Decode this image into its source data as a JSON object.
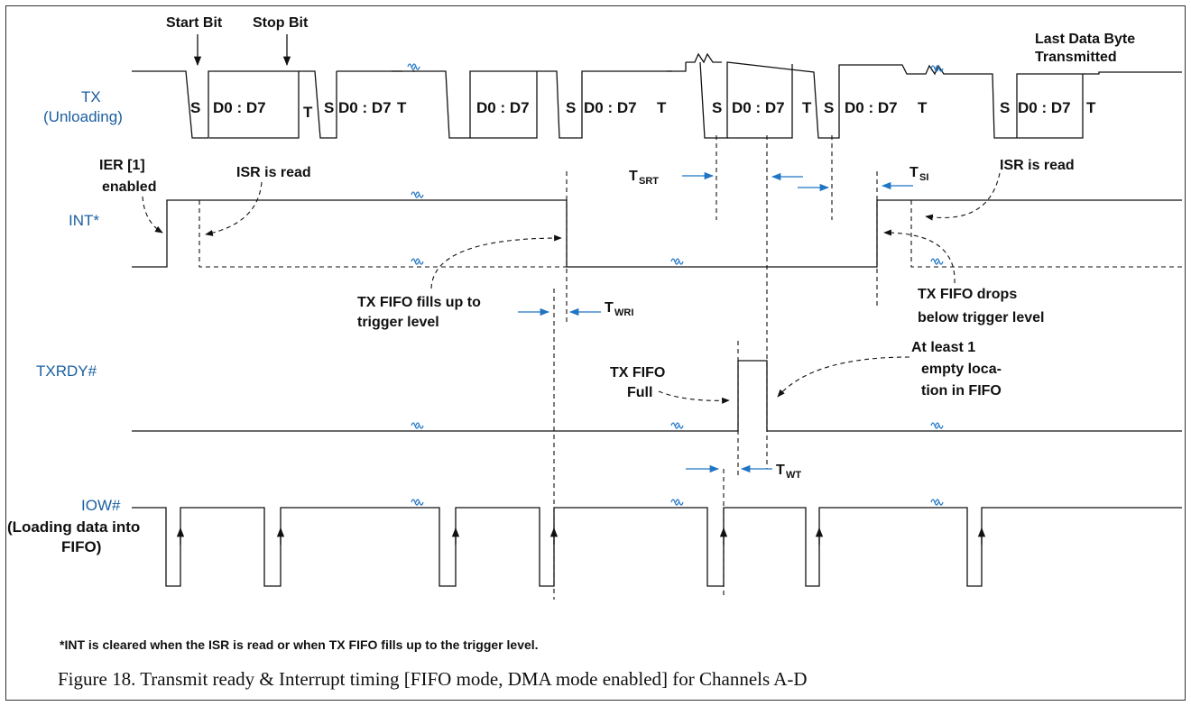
{
  "signals": {
    "tx": "TX",
    "tx_sub": "(Unloading)",
    "int": "INT*",
    "txrdy": "TXRDY#",
    "iow": "IOW#",
    "iow_sub1": "(Loading data into",
    "iow_sub2": "FIFO)"
  },
  "bits": {
    "s": "S",
    "t": "T",
    "data": "D0 : D7"
  },
  "annotations": {
    "start_bit": "Start Bit",
    "stop_bit": "Stop Bit",
    "last_byte_1": "Last Data Byte",
    "last_byte_2": "Transmitted",
    "ier_1": "IER [1]",
    "ier_2": "enabled",
    "isr_read": "ISR is read",
    "fills_1": "TX FIFO fills up to",
    "fills_2": "trigger level",
    "drops_1": "TX FIFO drops",
    "drops_2": "below trigger level",
    "full_1": "TX FIFO",
    "full_2": "Full",
    "empty_1": "At least 1",
    "empty_2": "empty loca-",
    "empty_3": "tion in FIFO"
  },
  "timings": {
    "t": "T",
    "srt": "SRT",
    "si": "SI",
    "wri": "WRI",
    "wt": "WT"
  },
  "footnote": "*INT is cleared when the ISR is read or when TX FIFO fills up to the trigger level.",
  "caption": "Figure 18. Transmit ready & Interrupt timing [FIFO mode, DMA mode enabled] for Channels A-D",
  "colors": {
    "signal_label": "#1a5fa0",
    "timing_arrow": "#1f75c4",
    "waveform": "#111111"
  }
}
